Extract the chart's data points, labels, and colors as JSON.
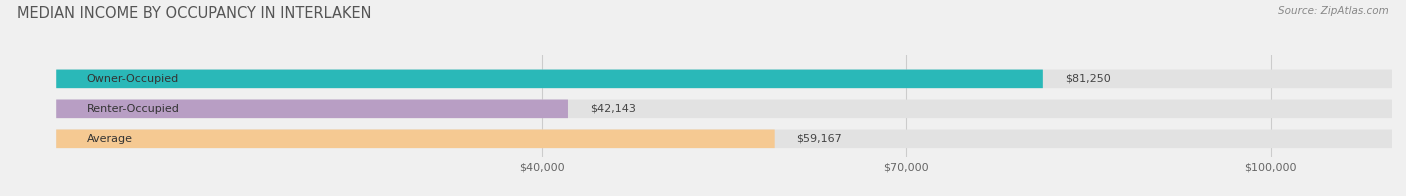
{
  "title": "MEDIAN INCOME BY OCCUPANCY IN INTERLAKEN",
  "source": "Source: ZipAtlas.com",
  "categories": [
    "Owner-Occupied",
    "Renter-Occupied",
    "Average"
  ],
  "values": [
    81250,
    42143,
    59167
  ],
  "labels": [
    "$81,250",
    "$42,143",
    "$59,167"
  ],
  "bar_colors": [
    "#2ab8b8",
    "#b89ec4",
    "#f5c992"
  ],
  "background_color": "#f0f0f0",
  "bar_bg_color": "#e2e2e2",
  "xlim": [
    0,
    110000
  ],
  "xticks": [
    40000,
    70000,
    100000
  ],
  "xticklabels": [
    "$40,000",
    "$70,000",
    "$100,000"
  ],
  "title_fontsize": 10.5,
  "label_fontsize": 8,
  "tick_fontsize": 8,
  "source_fontsize": 7.5
}
